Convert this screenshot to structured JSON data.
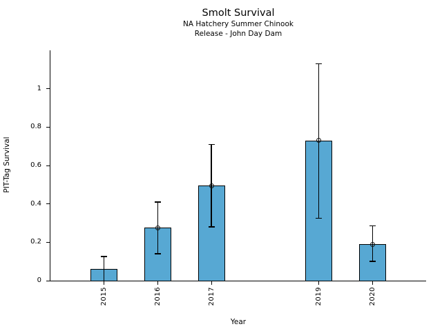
{
  "chart_data": {
    "type": "bar",
    "title": "Smolt Survival",
    "subtitle_line1": "NA Hatchery Summer Chinook",
    "subtitle_line2": "Release - John Day Dam",
    "xlabel": "Year",
    "ylabel": "PIT-Tag Survival",
    "categories": [
      2015,
      2016,
      2017,
      2019,
      2020
    ],
    "values": [
      0.06,
      0.275,
      0.495,
      0.73,
      0.19
    ],
    "error_low": [
      0.0,
      0.14,
      0.28,
      0.325,
      0.1
    ],
    "error_high": [
      0.125,
      0.41,
      0.71,
      1.13,
      0.285
    ],
    "point_marker": [
      false,
      true,
      true,
      true,
      true
    ],
    "xlim": [
      2014,
      2021
    ],
    "ylim": [
      0,
      1.2
    ],
    "yticks": [
      0,
      0.2,
      0.4,
      0.6,
      0.8,
      1
    ],
    "ytick_labels": [
      "0",
      "0.2",
      "0.4",
      "0.6",
      "0.8",
      "1"
    ],
    "bar_width_years": 0.5,
    "bar_color": "#57A8D3",
    "bar_edge_color": "#000000",
    "error_color": "#000000",
    "background_color": "#FFFFFF",
    "grid": false,
    "legend": null
  }
}
